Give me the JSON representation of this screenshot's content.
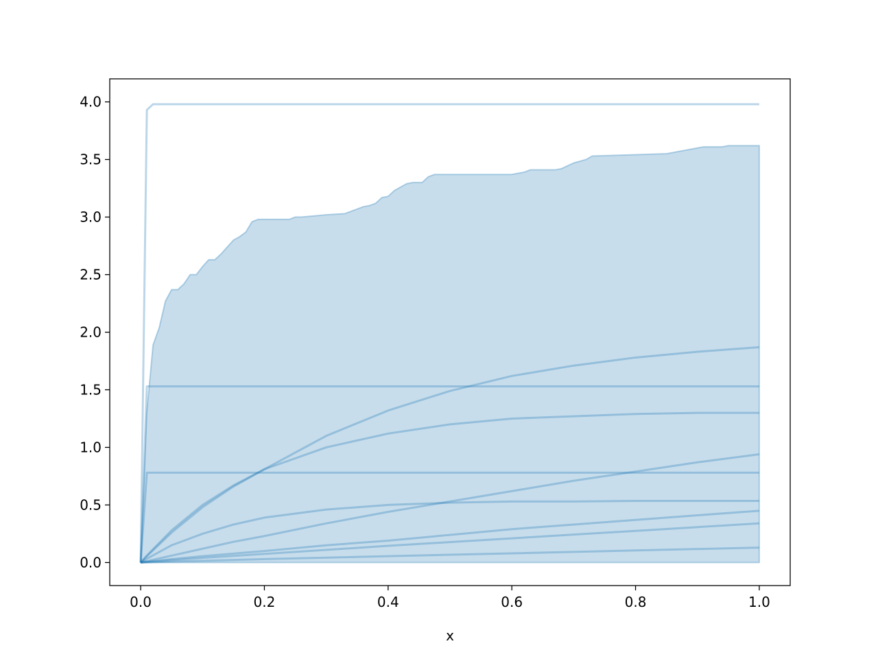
{
  "chart_data": {
    "type": "line",
    "title": "",
    "xlabel": "x",
    "ylabel": "",
    "xlim": [
      -0.05,
      1.05
    ],
    "ylim": [
      -0.2,
      4.2
    ],
    "xticks": [
      0.0,
      0.2,
      0.4,
      0.6,
      0.8,
      1.0
    ],
    "xtick_labels": [
      "0.0",
      "0.2",
      "0.4",
      "0.6",
      "0.8",
      "1.0"
    ],
    "yticks": [
      0.0,
      0.5,
      1.0,
      1.5,
      2.0,
      2.5,
      3.0,
      3.5,
      4.0
    ],
    "ytick_labels": [
      "0.0",
      "0.5",
      "1.0",
      "1.5",
      "2.0",
      "2.5",
      "3.0",
      "3.5",
      "4.0"
    ],
    "grid": false,
    "color": "#1f77b4",
    "band": {
      "x": [
        0,
        0.01,
        0.02,
        0.03,
        0.04,
        0.05,
        0.06,
        0.07,
        0.08,
        0.09,
        0.1,
        0.11,
        0.12,
        0.13,
        0.14,
        0.15,
        0.16,
        0.17,
        0.18,
        0.19,
        0.24,
        0.25,
        0.26,
        0.28,
        0.3,
        0.33,
        0.35,
        0.36,
        0.37,
        0.38,
        0.39,
        0.4,
        0.41,
        0.42,
        0.43,
        0.44,
        0.455,
        0.465,
        0.475,
        0.6,
        0.62,
        0.63,
        0.67,
        0.68,
        0.7,
        0.72,
        0.73,
        0.85,
        0.86,
        0.9,
        0.91,
        0.94,
        0.95,
        1.0
      ],
      "upper": [
        0,
        1.31,
        1.89,
        2.04,
        2.27,
        2.37,
        2.37,
        2.42,
        2.5,
        2.5,
        2.57,
        2.63,
        2.63,
        2.68,
        2.74,
        2.8,
        2.83,
        2.87,
        2.96,
        2.98,
        2.98,
        3.0,
        3.0,
        3.01,
        3.02,
        3.03,
        3.07,
        3.09,
        3.1,
        3.12,
        3.17,
        3.18,
        3.23,
        3.26,
        3.29,
        3.3,
        3.3,
        3.35,
        3.37,
        3.37,
        3.39,
        3.41,
        3.41,
        3.42,
        3.47,
        3.5,
        3.53,
        3.55,
        3.56,
        3.6,
        3.61,
        3.61,
        3.62,
        3.62
      ],
      "lower": 0
    },
    "series": [
      {
        "x": [
          0,
          0.01,
          0.02,
          1.0
        ],
        "y": [
          0,
          3.93,
          3.98,
          3.98
        ]
      },
      {
        "x": [
          0,
          0.01,
          1.0
        ],
        "y": [
          0,
          1.53,
          1.53
        ]
      },
      {
        "x": [
          0,
          0.01,
          1.0
        ],
        "y": [
          0,
          0.78,
          0.78
        ]
      },
      {
        "x": [
          0,
          0.01,
          0.05,
          0.1,
          0.15,
          0.2,
          0.3,
          0.4,
          0.5,
          0.6,
          0.7,
          0.8,
          0.9,
          1.0
        ],
        "y": [
          0,
          0.055,
          0.26,
          0.48,
          0.66,
          0.81,
          1.1,
          1.32,
          1.49,
          1.62,
          1.71,
          1.78,
          1.83,
          1.87
        ]
      },
      {
        "x": [
          0,
          0.01,
          0.05,
          0.1,
          0.15,
          0.2,
          0.3,
          0.4,
          0.5,
          0.6,
          0.7,
          0.8,
          0.9,
          1.0
        ],
        "y": [
          0,
          0.061,
          0.28,
          0.5,
          0.67,
          0.81,
          1.0,
          1.12,
          1.2,
          1.25,
          1.27,
          1.29,
          1.3,
          1.3
        ]
      },
      {
        "x": [
          0,
          0.01,
          0.05,
          0.1,
          0.15,
          0.2,
          0.3,
          0.4,
          0.5,
          0.6,
          0.7,
          0.8,
          0.9,
          1.0
        ],
        "y": [
          0,
          0.033,
          0.15,
          0.25,
          0.33,
          0.39,
          0.46,
          0.5,
          0.52,
          0.53,
          0.53,
          0.535,
          0.535,
          0.535
        ]
      },
      {
        "x": [
          0,
          0.01,
          0.05,
          0.1,
          0.15,
          0.2,
          0.3,
          0.4,
          0.5,
          0.6,
          0.7,
          0.8,
          0.9,
          1.0
        ],
        "y": [
          0,
          0.012,
          0.06,
          0.12,
          0.18,
          0.23,
          0.34,
          0.44,
          0.53,
          0.62,
          0.71,
          0.79,
          0.87,
          0.94
        ]
      },
      {
        "x": [
          0,
          0.01,
          0.05,
          0.1,
          0.2,
          0.3,
          0.4,
          0.5,
          0.6,
          0.7,
          0.8,
          0.9,
          1.0
        ],
        "y": [
          0,
          0.006,
          0.03,
          0.055,
          0.1,
          0.15,
          0.19,
          0.24,
          0.29,
          0.33,
          0.37,
          0.41,
          0.45
        ]
      },
      {
        "x": [
          0,
          0.1,
          0.2,
          0.4,
          0.6,
          0.8,
          1.0
        ],
        "y": [
          0,
          0.04,
          0.075,
          0.145,
          0.21,
          0.275,
          0.34
        ]
      },
      {
        "x": [
          0,
          0.2,
          0.4,
          0.6,
          0.8,
          1.0
        ],
        "y": [
          0,
          0.03,
          0.055,
          0.08,
          0.105,
          0.13
        ]
      }
    ]
  }
}
